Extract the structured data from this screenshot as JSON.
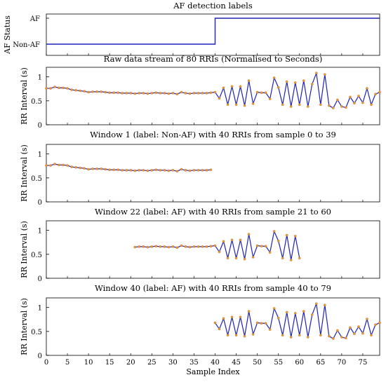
{
  "chart_data": [
    {
      "type": "line",
      "title": "AF detection labels",
      "ylabel": "AF Status",
      "y_tick_labels": [
        "AF",
        "Non-AF"
      ],
      "x": [
        0,
        40,
        79
      ],
      "values": [
        0,
        1,
        1
      ],
      "step": true,
      "xlim": [
        0,
        79
      ],
      "grid": false
    },
    {
      "type": "line",
      "title": "Raw data stream of 80 RRIs (Normalised to Seconds)",
      "ylabel": "RR Interval (s)",
      "x_start": 0,
      "values": [
        0.76,
        0.76,
        0.79,
        0.77,
        0.77,
        0.76,
        0.73,
        0.72,
        0.71,
        0.7,
        0.68,
        0.69,
        0.69,
        0.69,
        0.68,
        0.67,
        0.67,
        0.67,
        0.66,
        0.66,
        0.66,
        0.65,
        0.66,
        0.66,
        0.65,
        0.66,
        0.67,
        0.66,
        0.66,
        0.65,
        0.66,
        0.64,
        0.68,
        0.66,
        0.65,
        0.66,
        0.66,
        0.66,
        0.66,
        0.67,
        0.68,
        0.55,
        0.77,
        0.42,
        0.8,
        0.42,
        0.8,
        0.4,
        0.92,
        0.44,
        0.68,
        0.67,
        0.67,
        0.54,
        0.98,
        0.78,
        0.42,
        0.9,
        0.38,
        0.88,
        0.42,
        0.92,
        0.38,
        0.85,
        1.08,
        0.42,
        1.05,
        0.4,
        0.35,
        0.52,
        0.38,
        0.36,
        0.58,
        0.45,
        0.6,
        0.46,
        0.76,
        0.42,
        0.64,
        0.68
      ],
      "ylim": [
        0,
        1.2
      ],
      "y_ticks": [
        0,
        0.5,
        1
      ],
      "xlim": [
        0,
        79
      ]
    },
    {
      "type": "line",
      "title": "Window 1 (label: Non-AF) with 40 RRIs from sample 0 to 39",
      "ylabel": "RR Interval (s)",
      "x_start": 0,
      "values": [
        0.76,
        0.76,
        0.79,
        0.77,
        0.77,
        0.76,
        0.73,
        0.72,
        0.71,
        0.7,
        0.68,
        0.69,
        0.69,
        0.69,
        0.68,
        0.67,
        0.67,
        0.67,
        0.66,
        0.66,
        0.66,
        0.65,
        0.66,
        0.66,
        0.65,
        0.66,
        0.67,
        0.66,
        0.66,
        0.65,
        0.66,
        0.64,
        0.68,
        0.66,
        0.65,
        0.66,
        0.66,
        0.66,
        0.66,
        0.67
      ],
      "ylim": [
        0,
        1.2
      ],
      "y_ticks": [
        0,
        0.5,
        1
      ],
      "xlim": [
        0,
        79
      ]
    },
    {
      "type": "line",
      "title": "Window 22 (label: AF) with 40 RRIs from sample 21 to 60",
      "ylabel": "RR Interval (s)",
      "x_start": 21,
      "values": [
        0.65,
        0.66,
        0.66,
        0.65,
        0.66,
        0.67,
        0.66,
        0.66,
        0.65,
        0.66,
        0.64,
        0.68,
        0.66,
        0.65,
        0.66,
        0.66,
        0.66,
        0.66,
        0.67,
        0.68,
        0.55,
        0.77,
        0.42,
        0.8,
        0.42,
        0.8,
        0.4,
        0.92,
        0.44,
        0.68,
        0.67,
        0.67,
        0.54,
        0.98,
        0.78,
        0.42,
        0.9,
        0.38,
        0.88,
        0.42
      ],
      "ylim": [
        0,
        1.2
      ],
      "y_ticks": [
        0,
        0.5,
        1
      ],
      "xlim": [
        0,
        79
      ]
    },
    {
      "type": "line",
      "title": "Window 40 (label: AF) with 40 RRIs from sample 40 to 79",
      "ylabel": "RR Interval (s)",
      "xlabel": "Sample Index",
      "x_start": 40,
      "values": [
        0.68,
        0.55,
        0.77,
        0.42,
        0.8,
        0.42,
        0.8,
        0.4,
        0.92,
        0.44,
        0.68,
        0.67,
        0.67,
        0.54,
        0.98,
        0.78,
        0.42,
        0.9,
        0.38,
        0.88,
        0.42,
        0.92,
        0.38,
        0.85,
        1.08,
        0.42,
        1.05,
        0.4,
        0.35,
        0.52,
        0.38,
        0.36,
        0.58,
        0.45,
        0.6,
        0.46,
        0.76,
        0.42,
        0.64,
        0.68
      ],
      "ylim": [
        0,
        1.2
      ],
      "y_ticks": [
        0,
        0.5,
        1
      ],
      "xlim": [
        0,
        79
      ],
      "x_ticks": [
        0,
        5,
        10,
        15,
        20,
        25,
        30,
        35,
        40,
        45,
        50,
        55,
        60,
        65,
        70,
        75
      ]
    }
  ],
  "colors": {
    "line": "#1f22b8",
    "marker": "#e8a020",
    "axis": "#000000"
  }
}
